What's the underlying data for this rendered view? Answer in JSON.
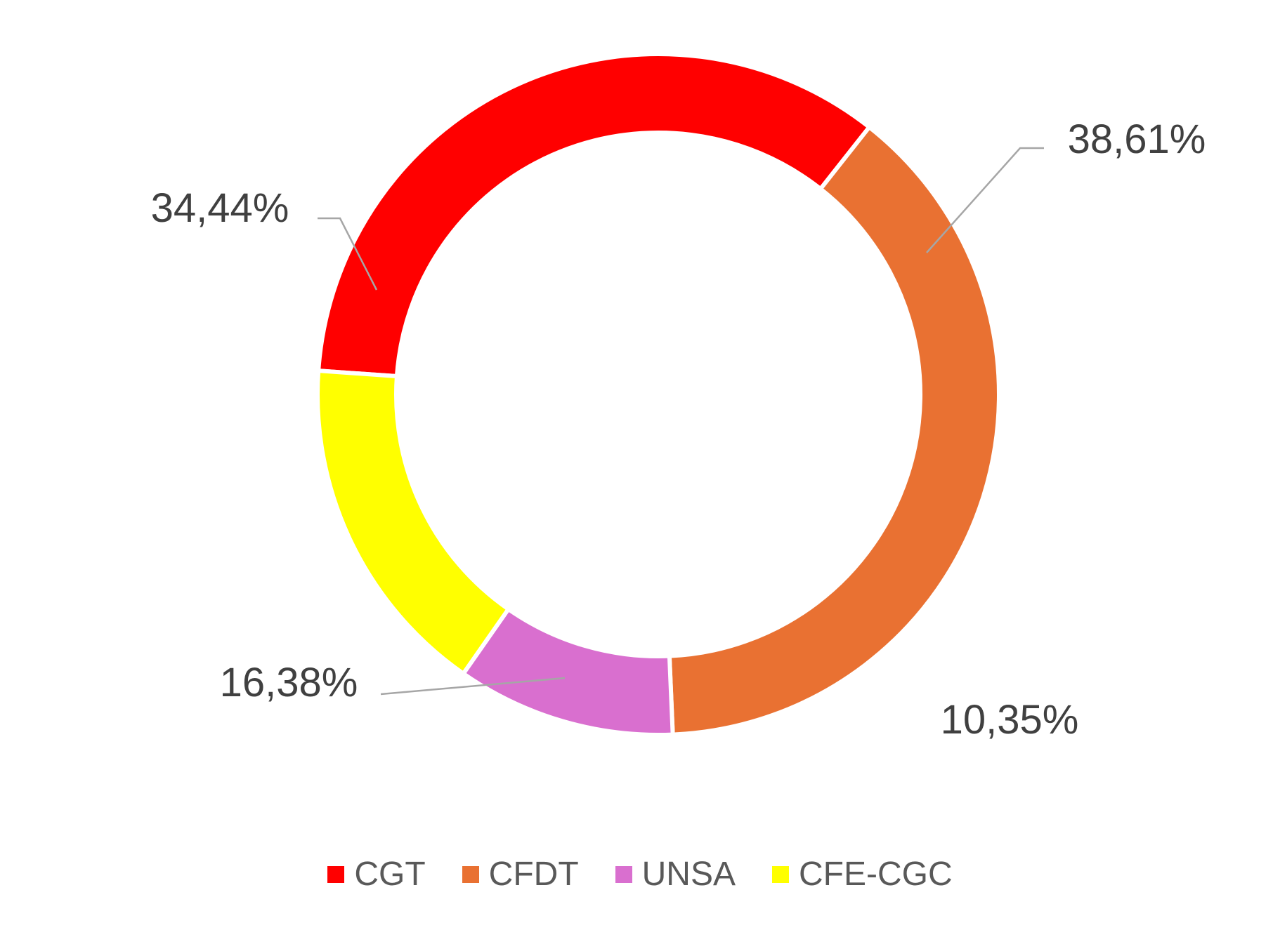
{
  "chart_data": {
    "type": "pie",
    "variant": "donut",
    "categories": [
      "CGT",
      "CFDT",
      "UNSA",
      "CFE-CGC"
    ],
    "values": [
      34.44,
      38.61,
      10.35,
      16.38
    ],
    "labels": [
      "34,44%",
      "38,61%",
      "10,35%",
      "16,38%"
    ],
    "colors": [
      "#ff0000",
      "#e97132",
      "#d96fcf",
      "#ffff00"
    ],
    "legend_position": "bottom",
    "title": ""
  }
}
